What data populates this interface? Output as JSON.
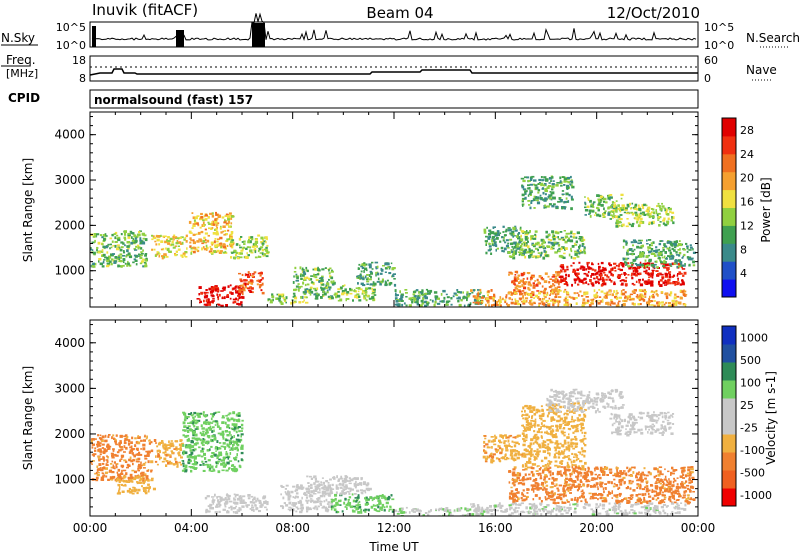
{
  "header": {
    "station": "Inuvik (fitACF)",
    "beam": "Beam 04",
    "date": "12/Oct/2010"
  },
  "top_panels": {
    "nsky_label": "N.Sky",
    "nsky_ticks": [
      "10^5",
      "10^0"
    ],
    "nsearch_label": "N.Search",
    "nsearch_ticks": [
      "10^5",
      "10^0"
    ],
    "freq_label": "Freq.",
    "freq_unit": "[MHz]",
    "freq_ticks": [
      "18",
      "8"
    ],
    "nave_label": "Nave",
    "nave_ticks": [
      "60",
      "0"
    ],
    "cpid_label": "CPID",
    "cpid_value": "normalsound (fast) 157"
  },
  "colors": {
    "power_scale": [
      "#1010f0",
      "#2050c8",
      "#3a8a8a",
      "#3fa050",
      "#90d040",
      "#f0e040",
      "#f5a030",
      "#f07020",
      "#f03010",
      "#e00000"
    ],
    "velocity_scale": [
      "#f00000",
      "#f06020",
      "#f08030",
      "#f0b040",
      "#c8c8c8",
      "#c8c8c8",
      "#70d060",
      "#2e8b57",
      "#2050a0",
      "#1030c0"
    ]
  },
  "chart_data": [
    {
      "type": "heatmap",
      "title": "",
      "xlabel": "Time UT",
      "ylabel": "Slant Range [km]",
      "xticks": [
        "00:00",
        "04:00",
        "08:00",
        "12:00",
        "16:00",
        "20:00",
        "00:00"
      ],
      "yticks": [
        "1000",
        "2000",
        "3000",
        "4000"
      ],
      "xlim": [
        0,
        24
      ],
      "ylim": [
        200,
        4500
      ],
      "colorbar_label": "Power [dB]",
      "colorbar_ticks": [
        "4",
        "8",
        "12",
        "16",
        "20",
        "24",
        "28"
      ],
      "colorbar_range": [
        0,
        30
      ],
      "regions": [
        {
          "t": [
            0.0,
            2.2
          ],
          "r": [
            1100,
            1900
          ],
          "v": 12
        },
        {
          "t": [
            2.4,
            3.8
          ],
          "r": [
            1300,
            1800
          ],
          "v": 16
        },
        {
          "t": [
            3.9,
            5.6
          ],
          "r": [
            1400,
            2300
          ],
          "v": 18
        },
        {
          "t": [
            5.5,
            7.0
          ],
          "r": [
            1300,
            1800
          ],
          "v": 14
        },
        {
          "t": [
            4.2,
            6.0
          ],
          "r": [
            250,
            700
          ],
          "v": 29
        },
        {
          "t": [
            5.8,
            6.8
          ],
          "r": [
            500,
            1000
          ],
          "v": 24
        },
        {
          "t": [
            7.0,
            8.5
          ],
          "r": [
            300,
            500
          ],
          "v": 14
        },
        {
          "t": [
            8.0,
            9.6
          ],
          "r": [
            400,
            1100
          ],
          "v": 12
        },
        {
          "t": [
            9.6,
            11.2
          ],
          "r": [
            350,
            700
          ],
          "v": 14
        },
        {
          "t": [
            10.5,
            12.0
          ],
          "r": [
            700,
            1200
          ],
          "v": 10
        },
        {
          "t": [
            12.0,
            15.5
          ],
          "r": [
            250,
            600
          ],
          "v": 10
        },
        {
          "t": [
            15.5,
            17.0
          ],
          "r": [
            1400,
            2000
          ],
          "v": 10
        },
        {
          "t": [
            16.5,
            19.5
          ],
          "r": [
            1300,
            1900
          ],
          "v": 12
        },
        {
          "t": [
            17.0,
            19.0
          ],
          "r": [
            2400,
            3100
          ],
          "v": 10
        },
        {
          "t": [
            19.5,
            21.0
          ],
          "r": [
            2200,
            2700
          ],
          "v": 12
        },
        {
          "t": [
            20.5,
            23.0
          ],
          "r": [
            2000,
            2500
          ],
          "v": 14
        },
        {
          "t": [
            18.5,
            23.5
          ],
          "r": [
            700,
            1200
          ],
          "v": 28
        },
        {
          "t": [
            16.5,
            18.5
          ],
          "r": [
            500,
            1000
          ],
          "v": 22
        },
        {
          "t": [
            15.0,
            23.5
          ],
          "r": [
            250,
            600
          ],
          "v": 20
        },
        {
          "t": [
            21.0,
            23.8
          ],
          "r": [
            1100,
            1700
          ],
          "v": 10
        }
      ]
    },
    {
      "type": "heatmap",
      "title": "",
      "xlabel": "Time UT",
      "ylabel": "Slant Range [km]",
      "xticks": [
        "00:00",
        "04:00",
        "08:00",
        "12:00",
        "16:00",
        "20:00",
        "00:00"
      ],
      "yticks": [
        "1000",
        "2000",
        "3000",
        "4000"
      ],
      "xlim": [
        0,
        24
      ],
      "ylim": [
        200,
        4500
      ],
      "colorbar_label": "Velocity [m s-1]",
      "colorbar_ticks": [
        "1000",
        "500",
        "100",
        "25",
        "-25",
        "-100",
        "-500",
        "-1000"
      ],
      "colorbar_range": [
        -1000,
        1000
      ],
      "regions": [
        {
          "t": [
            0.0,
            2.4
          ],
          "r": [
            1000,
            2000
          ],
          "v": -300
        },
        {
          "t": [
            1.0,
            2.5
          ],
          "r": [
            700,
            1100
          ],
          "v": -150
        },
        {
          "t": [
            2.5,
            3.6
          ],
          "r": [
            1300,
            1900
          ],
          "v": -200
        },
        {
          "t": [
            3.6,
            6.0
          ],
          "r": [
            1200,
            2500
          ],
          "v": 200
        },
        {
          "t": [
            4.5,
            7.0
          ],
          "r": [
            300,
            700
          ],
          "v": 0
        },
        {
          "t": [
            7.5,
            9.5
          ],
          "r": [
            300,
            900
          ],
          "v": 0
        },
        {
          "t": [
            9.5,
            12.0
          ],
          "r": [
            300,
            700
          ],
          "v": 200
        },
        {
          "t": [
            8.5,
            11.0
          ],
          "r": [
            700,
            1100
          ],
          "v": 10
        },
        {
          "t": [
            12.0,
            15.5
          ],
          "r": [
            200,
            400
          ],
          "v": 60
        },
        {
          "t": [
            15.5,
            17.0
          ],
          "r": [
            1400,
            2000
          ],
          "v": -200
        },
        {
          "t": [
            17.0,
            19.5
          ],
          "r": [
            1300,
            2700
          ],
          "v": -150
        },
        {
          "t": [
            18.0,
            21.0
          ],
          "r": [
            2500,
            3000
          ],
          "v": 0
        },
        {
          "t": [
            20.5,
            23.0
          ],
          "r": [
            2000,
            2500
          ],
          "v": 0
        },
        {
          "t": [
            16.5,
            23.8
          ],
          "r": [
            500,
            1300
          ],
          "v": -300
        },
        {
          "t": [
            15.0,
            23.5
          ],
          "r": [
            250,
            500
          ],
          "v": 40
        }
      ]
    }
  ]
}
